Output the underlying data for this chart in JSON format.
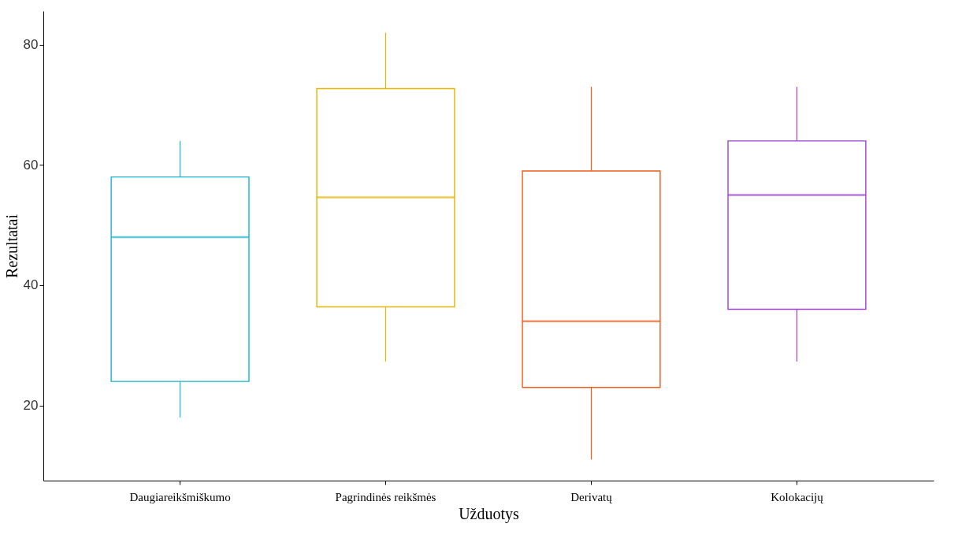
{
  "chart_data": {
    "type": "box",
    "xlabel": "Užduotys",
    "ylabel": "Rezultatai",
    "categories": [
      "Daugiareikšmiškumo",
      "Pagrindinės reikšmės",
      "Derivatų",
      "Kolokacijų"
    ],
    "colors": [
      "#1ab2c8",
      "#e6b400",
      "#f25a1e",
      "#9b3fd6"
    ],
    "boxes": [
      {
        "low": 18,
        "q1": 24,
        "median": 48,
        "q3": 58,
        "high": 64
      },
      {
        "low": 27.3,
        "q1": 36.4,
        "median": 54.6,
        "q3": 72.7,
        "high": 82
      },
      {
        "low": 11,
        "q1": 23,
        "median": 34,
        "q3": 59,
        "high": 73
      },
      {
        "low": 27.3,
        "q1": 36,
        "median": 55,
        "q3": 64,
        "high": 73
      }
    ],
    "ylim": [
      7.5,
      85.6
    ],
    "yticks": [
      20,
      40,
      60,
      80
    ],
    "grid": false
  }
}
